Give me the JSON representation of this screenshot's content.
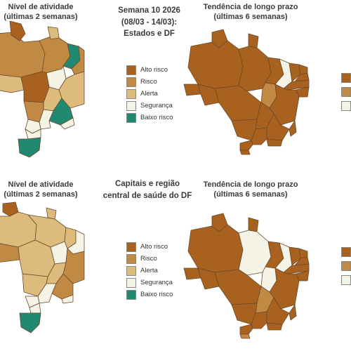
{
  "colors": {
    "alto_risco": "#A8611E",
    "risco": "#C08A45",
    "alerta": "#DDBB7C",
    "seguranca": "#F5F3E6",
    "baixo_risco": "#1F8A71",
    "outline": "#6b4a2a"
  },
  "top": {
    "activity_title_1": "Nível de atividade",
    "activity_title_2": "(últimas 2 semanas)",
    "center_title_1": "Semana 10 2026",
    "center_title_2": "(08/03 - 14/03):",
    "center_title_3": "Estados e DF",
    "trend_title_1": "Tendência de longo prazo",
    "trend_title_2": "(últimas 6 semanas)"
  },
  "bottom": {
    "activity_title_1": "Nível de atividade",
    "activity_title_2": "(últimas 2 semanas)",
    "center_title_1": "Capitais e região",
    "center_title_2": "central de saúde do DF",
    "trend_title_1": "Tendência de longo prazo",
    "trend_title_2": "(últimas 6 semanas)"
  },
  "legend": [
    {
      "label": "Alto risco",
      "color": "#A8611E"
    },
    {
      "label": "Risco",
      "color": "#C08A45"
    },
    {
      "label": "Alerta",
      "color": "#DDBB7C"
    },
    {
      "label": "Segurança",
      "color": "#F5F3E6"
    },
    {
      "label": "Baixo risco",
      "color": "#1F8A71"
    }
  ],
  "trend_legend_colors": [
    "#A8611E",
    "#C08A45",
    "#F5F3E6"
  ]
}
